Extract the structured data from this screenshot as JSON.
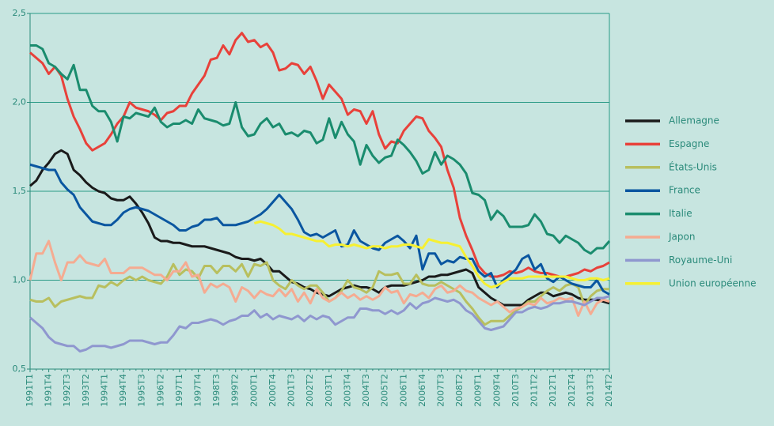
{
  "chart_data": {
    "type": "line",
    "categories": [
      "1991T1",
      null,
      null,
      "1991T4",
      null,
      null,
      "1992T3",
      null,
      null,
      "1993T2",
      null,
      null,
      "1994T1",
      null,
      null,
      "1994T4",
      null,
      null,
      "1995T3",
      null,
      null,
      "1996T2",
      null,
      null,
      "1997T1",
      null,
      null,
      "1997T4",
      null,
      null,
      "1998T3",
      null,
      null,
      "1999T2",
      null,
      null,
      "2000T1",
      null,
      null,
      "2000T4",
      null,
      null,
      "2001T3",
      null,
      null,
      "2002T2",
      null,
      null,
      "2003T1",
      null,
      null,
      "2003T4",
      null,
      null,
      "2004T3",
      null,
      null,
      "2005T2",
      null,
      null,
      "2006T1",
      null,
      null,
      "2006T4",
      null,
      null,
      "2007T3",
      null,
      null,
      "2008T2",
      null,
      null,
      "2009T1",
      null,
      null,
      "2009T4",
      null,
      null,
      "2010T3",
      null,
      null,
      "2011T2",
      null,
      null,
      "2012T1",
      null,
      null,
      "2012T4",
      null,
      null,
      "2013T3",
      null,
      null,
      "2014T2"
    ],
    "ylim": [
      0.5,
      2.5
    ],
    "yticks": [
      {
        "value": 0.5,
        "label": "0,5"
      },
      {
        "value": 1.0,
        "label": "1,0"
      },
      {
        "value": 1.5,
        "label": "1,5"
      },
      {
        "value": 2.0,
        "label": "2,0"
      },
      {
        "value": 2.5,
        "label": "2,5"
      }
    ],
    "grid": true,
    "legend": "right",
    "series": [
      {
        "name": "Allemagne",
        "color": "#1a1a1a",
        "values": [
          1.53,
          1.56,
          1.62,
          1.66,
          1.71,
          1.73,
          1.71,
          1.62,
          1.59,
          1.55,
          1.52,
          1.5,
          1.49,
          1.46,
          1.45,
          1.45,
          1.47,
          1.43,
          1.38,
          1.32,
          1.24,
          1.22,
          1.22,
          1.21,
          1.21,
          1.2,
          1.19,
          1.19,
          1.19,
          1.18,
          1.17,
          1.16,
          1.15,
          1.13,
          1.12,
          1.12,
          1.11,
          1.12,
          1.09,
          1.05,
          1.05,
          1.02,
          0.99,
          0.98,
          0.96,
          0.95,
          0.93,
          0.92,
          0.91,
          0.93,
          0.95,
          0.96,
          0.97,
          0.96,
          0.96,
          0.95,
          0.93,
          0.96,
          0.97,
          0.97,
          0.97,
          0.98,
          0.99,
          1.0,
          1.02,
          1.02,
          1.03,
          1.03,
          1.04,
          1.05,
          1.06,
          1.04,
          0.96,
          0.93,
          0.9,
          0.88,
          0.86,
          0.86,
          0.86,
          0.86,
          0.89,
          0.91,
          0.93,
          0.93,
          0.91,
          0.92,
          0.93,
          0.92,
          0.9,
          0.89,
          0.89,
          0.89,
          0.88,
          0.87
        ]
      },
      {
        "name": "Espagne",
        "color": "#e8413a",
        "values": [
          2.28,
          2.25,
          2.22,
          2.16,
          2.2,
          2.15,
          2.02,
          1.92,
          1.85,
          1.77,
          1.73,
          1.75,
          1.77,
          1.82,
          1.88,
          1.92,
          2.0,
          1.97,
          1.96,
          1.95,
          1.93,
          1.9,
          1.94,
          1.95,
          1.98,
          1.98,
          2.05,
          2.1,
          2.15,
          2.24,
          2.25,
          2.32,
          2.27,
          2.35,
          2.39,
          2.34,
          2.35,
          2.31,
          2.33,
          2.28,
          2.18,
          2.19,
          2.22,
          2.21,
          2.16,
          2.2,
          2.12,
          2.02,
          2.1,
          2.06,
          2.02,
          1.93,
          1.96,
          1.95,
          1.88,
          1.95,
          1.82,
          1.74,
          1.78,
          1.77,
          1.84,
          1.88,
          1.92,
          1.91,
          1.84,
          1.8,
          1.75,
          1.62,
          1.52,
          1.35,
          1.25,
          1.17,
          1.08,
          1.04,
          1.02,
          1.02,
          1.03,
          1.05,
          1.04,
          1.05,
          1.07,
          1.05,
          1.04,
          1.04,
          1.03,
          1.02,
          1.02,
          1.03,
          1.04,
          1.06,
          1.05,
          1.07,
          1.08,
          1.1
        ]
      },
      {
        "name": "États-Unis",
        "color": "#b8bf5e",
        "values": [
          0.89,
          0.88,
          0.88,
          0.9,
          0.85,
          0.88,
          0.89,
          0.9,
          0.91,
          0.9,
          0.9,
          0.97,
          0.96,
          0.99,
          0.97,
          1.0,
          1.02,
          1.0,
          1.02,
          1.0,
          0.99,
          0.98,
          1.02,
          1.09,
          1.03,
          1.06,
          1.05,
          1.01,
          1.08,
          1.08,
          1.04,
          1.08,
          1.08,
          1.05,
          1.09,
          1.02,
          1.09,
          1.08,
          1.1,
          1.0,
          0.97,
          0.95,
          1.0,
          0.97,
          0.95,
          0.97,
          0.97,
          0.93,
          0.88,
          0.9,
          0.94,
          1.0,
          0.96,
          0.95,
          0.93,
          0.96,
          1.05,
          1.03,
          1.03,
          1.04,
          0.98,
          0.98,
          1.03,
          0.98,
          0.97,
          0.97,
          0.99,
          0.97,
          0.95,
          0.93,
          0.88,
          0.84,
          0.79,
          0.75,
          0.77,
          0.77,
          0.77,
          0.8,
          0.83,
          0.85,
          0.88,
          0.88,
          0.91,
          0.94,
          0.96,
          0.94,
          0.97,
          0.98,
          0.96,
          0.86,
          0.91,
          0.94,
          0.95,
          0.95
        ]
      },
      {
        "name": "France",
        "color": "#0a56a0",
        "values": [
          1.65,
          1.64,
          1.63,
          1.62,
          1.62,
          1.55,
          1.51,
          1.48,
          1.41,
          1.37,
          1.33,
          1.32,
          1.31,
          1.31,
          1.34,
          1.38,
          1.4,
          1.41,
          1.4,
          1.39,
          1.37,
          1.35,
          1.33,
          1.31,
          1.28,
          1.28,
          1.3,
          1.31,
          1.34,
          1.34,
          1.35,
          1.31,
          1.31,
          1.31,
          1.32,
          1.33,
          1.35,
          1.37,
          1.4,
          1.44,
          1.48,
          1.44,
          1.4,
          1.34,
          1.27,
          1.25,
          1.26,
          1.24,
          1.26,
          1.28,
          1.19,
          1.2,
          1.28,
          1.22,
          1.2,
          1.18,
          1.17,
          1.21,
          1.23,
          1.25,
          1.22,
          1.18,
          1.25,
          1.06,
          1.15,
          1.15,
          1.09,
          1.11,
          1.1,
          1.13,
          1.12,
          1.12,
          1.05,
          1.02,
          1.04,
          0.96,
          1.0,
          1.03,
          1.06,
          1.12,
          1.14,
          1.06,
          1.09,
          1.01,
          0.99,
          1.02,
          1.0,
          0.98,
          0.97,
          0.96,
          0.96,
          1.0,
          0.94,
          0.92
        ]
      },
      {
        "name": "Italie",
        "color": "#1a8c6e",
        "values": [
          2.32,
          2.32,
          2.3,
          2.22,
          2.2,
          2.16,
          2.13,
          2.21,
          2.07,
          2.07,
          1.98,
          1.95,
          1.95,
          1.89,
          1.78,
          1.92,
          1.91,
          1.94,
          1.93,
          1.92,
          1.97,
          1.89,
          1.86,
          1.88,
          1.88,
          1.9,
          1.88,
          1.96,
          1.91,
          1.9,
          1.89,
          1.87,
          1.88,
          2.0,
          1.86,
          1.81,
          1.82,
          1.88,
          1.91,
          1.86,
          1.88,
          1.82,
          1.83,
          1.81,
          1.84,
          1.83,
          1.77,
          1.79,
          1.91,
          1.8,
          1.89,
          1.82,
          1.78,
          1.65,
          1.76,
          1.7,
          1.66,
          1.69,
          1.7,
          1.79,
          1.76,
          1.72,
          1.67,
          1.6,
          1.62,
          1.72,
          1.65,
          1.7,
          1.68,
          1.65,
          1.6,
          1.49,
          1.48,
          1.45,
          1.34,
          1.39,
          1.36,
          1.3,
          1.3,
          1.3,
          1.31,
          1.37,
          1.33,
          1.26,
          1.25,
          1.21,
          1.25,
          1.23,
          1.21,
          1.17,
          1.15,
          1.18,
          1.18,
          1.22
        ]
      },
      {
        "name": "Japon",
        "color": "#f5ab91",
        "values": [
          1.0,
          1.15,
          1.15,
          1.22,
          1.1,
          1.0,
          1.1,
          1.1,
          1.14,
          1.1,
          1.09,
          1.08,
          1.12,
          1.04,
          1.04,
          1.04,
          1.07,
          1.07,
          1.07,
          1.05,
          1.03,
          1.03,
          1.0,
          1.05,
          1.05,
          1.1,
          1.02,
          1.03,
          0.93,
          0.98,
          0.96,
          0.98,
          0.96,
          0.88,
          0.96,
          0.94,
          0.9,
          0.94,
          0.92,
          0.91,
          0.95,
          0.91,
          0.95,
          0.88,
          0.93,
          0.87,
          0.95,
          0.9,
          0.88,
          0.9,
          0.93,
          0.9,
          0.92,
          0.89,
          0.91,
          0.89,
          0.91,
          0.96,
          0.93,
          0.94,
          0.87,
          0.92,
          0.91,
          0.93,
          0.9,
          0.95,
          0.97,
          0.93,
          0.94,
          0.97,
          0.94,
          0.93,
          0.9,
          0.88,
          0.86,
          0.88,
          0.85,
          0.82,
          0.84,
          0.85,
          0.87,
          0.86,
          0.9,
          0.87,
          0.88,
          0.9,
          0.89,
          0.9,
          0.8,
          0.88,
          0.81,
          0.87,
          0.89,
          0.88
        ]
      },
      {
        "name": "Royaume-Uni",
        "color": "#8f97cf",
        "values": [
          0.79,
          0.76,
          0.73,
          0.68,
          0.65,
          0.64,
          0.63,
          0.63,
          0.6,
          0.61,
          0.63,
          0.63,
          0.63,
          0.62,
          0.63,
          0.64,
          0.66,
          0.66,
          0.66,
          0.65,
          0.64,
          0.65,
          0.65,
          0.69,
          0.74,
          0.73,
          0.76,
          0.76,
          0.77,
          0.78,
          0.77,
          0.75,
          0.77,
          0.78,
          0.8,
          0.8,
          0.83,
          0.79,
          0.81,
          0.78,
          0.8,
          0.79,
          0.78,
          0.8,
          0.77,
          0.8,
          0.78,
          0.8,
          0.79,
          0.75,
          0.77,
          0.79,
          0.79,
          0.84,
          0.84,
          0.83,
          0.83,
          0.81,
          0.83,
          0.81,
          0.83,
          0.87,
          0.84,
          0.87,
          0.88,
          0.9,
          0.89,
          0.88,
          0.89,
          0.87,
          0.83,
          0.81,
          0.77,
          0.73,
          0.72,
          0.73,
          0.74,
          0.78,
          0.82,
          0.82,
          0.84,
          0.85,
          0.84,
          0.85,
          0.87,
          0.87,
          0.88,
          0.88,
          0.87,
          0.86,
          0.88,
          0.9,
          0.9,
          0.91
        ]
      },
      {
        "name": "Union européenne",
        "color": "#f6f032",
        "values": [
          null,
          null,
          null,
          null,
          null,
          null,
          null,
          null,
          null,
          null,
          null,
          null,
          null,
          null,
          null,
          null,
          null,
          null,
          null,
          null,
          null,
          null,
          null,
          null,
          null,
          null,
          null,
          null,
          null,
          null,
          null,
          null,
          null,
          null,
          null,
          null,
          1.32,
          1.33,
          1.32,
          1.31,
          1.29,
          1.26,
          1.26,
          1.25,
          1.24,
          1.23,
          1.22,
          1.22,
          1.19,
          1.2,
          1.2,
          1.19,
          1.2,
          1.19,
          1.18,
          1.19,
          1.19,
          1.18,
          1.19,
          1.19,
          1.2,
          1.2,
          1.19,
          1.18,
          1.23,
          1.22,
          1.21,
          1.21,
          1.2,
          1.19,
          1.13,
          1.08,
          1.02,
          0.98,
          0.96,
          0.97,
          0.99,
          1.01,
          1.01,
          1.01,
          1.02,
          1.02,
          1.02,
          1.02,
          1.02,
          1.02,
          1.02,
          1.01,
          1.0,
          1.0,
          1.01,
          1.01,
          1.0,
          1.01
        ]
      }
    ]
  }
}
